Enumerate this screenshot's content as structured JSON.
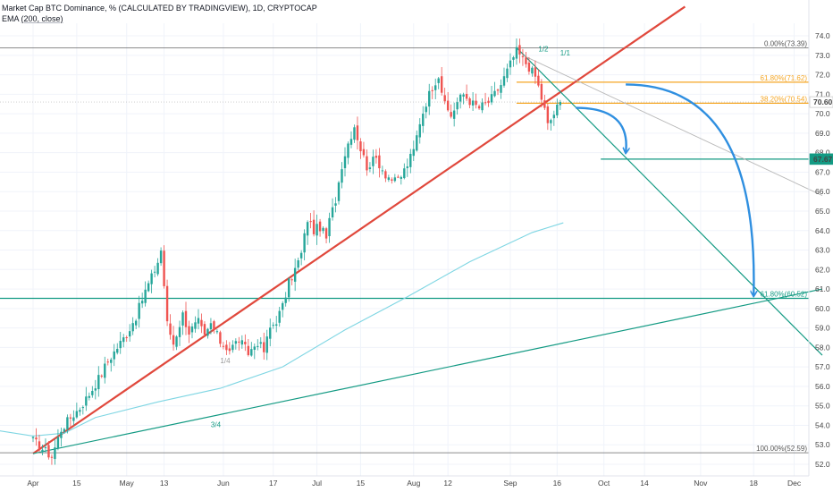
{
  "header": {
    "title": "Market Cap BTC Dominance, % (CALCULATED BY TRADINGVIEW), 1D, CRYPTOCAP",
    "indicator_name": "EMA",
    "indicator_params": "(200, close)"
  },
  "colors": {
    "up": "#26a69a",
    "down": "#ef5350",
    "red_trend": "#e0483c",
    "teal": "#139a83",
    "ema": "#7fd6e3",
    "arrow": "#2f8fe0",
    "fib_orange": "#f5a623",
    "gray": "#888888"
  },
  "chart_data": {
    "type": "candlestick",
    "ylim": [
      51.2,
      74.3
    ],
    "y_ticks": [
      52.0,
      53.0,
      54.0,
      55.0,
      56.0,
      57.0,
      58.0,
      59.0,
      60.0,
      61.0,
      62.0,
      63.0,
      64.0,
      65.0,
      66.0,
      67.0,
      68.0,
      69.0,
      70.0,
      71.0,
      72.0,
      73.0,
      74.0
    ],
    "x_ticks": [
      {
        "label": "Apr",
        "day": 0
      },
      {
        "label": "15",
        "day": 14
      },
      {
        "label": "May",
        "day": 30
      },
      {
        "label": "13",
        "day": 42
      },
      {
        "label": "Jun",
        "day": 61
      },
      {
        "label": "17",
        "day": 77
      },
      {
        "label": "Jul",
        "day": 91
      },
      {
        "label": "15",
        "day": 105
      },
      {
        "label": "Aug",
        "day": 122
      },
      {
        "label": "12",
        "day": 133
      },
      {
        "label": "Sep",
        "day": 153
      },
      {
        "label": "16",
        "day": 168
      },
      {
        "label": "Oct",
        "day": 183
      },
      {
        "label": "14",
        "day": 196
      },
      {
        "label": "Nov",
        "day": 214
      },
      {
        "label": "18",
        "day": 231
      },
      {
        "label": "Dec",
        "day": 244
      }
    ],
    "price_waypoints": [
      [
        0,
        53.2
      ],
      [
        3,
        52.8
      ],
      [
        6,
        52.4
      ],
      [
        9,
        53.8
      ],
      [
        12,
        54.4
      ],
      [
        15,
        54.9
      ],
      [
        18,
        55.6
      ],
      [
        21,
        56.4
      ],
      [
        24,
        57.3
      ],
      [
        27,
        58.0
      ],
      [
        30,
        58.7
      ],
      [
        33,
        59.6
      ],
      [
        36,
        60.9
      ],
      [
        38,
        61.6
      ],
      [
        40,
        62.4
      ],
      [
        41,
        63.0
      ],
      [
        42,
        61.2
      ],
      [
        43,
        59.2
      ],
      [
        45,
        58.2
      ],
      [
        48,
        59.7
      ],
      [
        50,
        58.8
      ],
      [
        53,
        59.3
      ],
      [
        55,
        58.5
      ],
      [
        57,
        59.2
      ],
      [
        60,
        58.3
      ],
      [
        63,
        57.9
      ],
      [
        66,
        58.4
      ],
      [
        69,
        57.7
      ],
      [
        72,
        58.3
      ],
      [
        74,
        57.8
      ],
      [
        76,
        59.0
      ],
      [
        78,
        59.4
      ],
      [
        80,
        60.1
      ],
      [
        82,
        61.3
      ],
      [
        84,
        62.0
      ],
      [
        86,
        62.8
      ],
      [
        88,
        64.6
      ],
      [
        90,
        64.0
      ],
      [
        92,
        64.2
      ],
      [
        94,
        63.6
      ],
      [
        95,
        64.5
      ],
      [
        97,
        65.6
      ],
      [
        99,
        67.4
      ],
      [
        101,
        68.5
      ],
      [
        103,
        69.4
      ],
      [
        105,
        68.2
      ],
      [
        107,
        67.3
      ],
      [
        110,
        67.7
      ],
      [
        113,
        66.9
      ],
      [
        116,
        66.5
      ],
      [
        118,
        66.8
      ],
      [
        120,
        67.4
      ],
      [
        122,
        68.1
      ],
      [
        124,
        69.6
      ],
      [
        126,
        70.6
      ],
      [
        128,
        71.4
      ],
      [
        130,
        72.0
      ],
      [
        132,
        70.4
      ],
      [
        134,
        69.9
      ],
      [
        136,
        70.6
      ],
      [
        138,
        71.0
      ],
      [
        141,
        70.5
      ],
      [
        143,
        70.3
      ],
      [
        146,
        70.6
      ],
      [
        148,
        71.0
      ],
      [
        150,
        71.5
      ],
      [
        152,
        72.2
      ],
      [
        154,
        72.9
      ],
      [
        155,
        73.2
      ],
      [
        157,
        72.8
      ],
      [
        159,
        72.4
      ],
      [
        161,
        71.9
      ],
      [
        162,
        71.4
      ],
      [
        163,
        70.8
      ],
      [
        164,
        70.2
      ],
      [
        165,
        69.4
      ],
      [
        166,
        69.7
      ],
      [
        167,
        70.0
      ],
      [
        168,
        70.3
      ],
      [
        169,
        70.6
      ]
    ],
    "ema_200": [
      [
        -12,
        53.75
      ],
      [
        0,
        53.45
      ],
      [
        10,
        53.6
      ],
      [
        20,
        54.4
      ],
      [
        40,
        55.2
      ],
      [
        60,
        55.9
      ],
      [
        80,
        57.0
      ],
      [
        100,
        58.9
      ],
      [
        120,
        60.6
      ],
      [
        140,
        62.4
      ],
      [
        160,
        63.9
      ],
      [
        170,
        64.4
      ]
    ],
    "trend_lines": [
      {
        "kind": "red-trendline",
        "from": [
          0,
          52.55
        ],
        "to": [
          209,
          75.5
        ]
      },
      {
        "kind": "teal-support",
        "from": [
          0,
          52.55
        ],
        "to": [
          253,
          61.0
        ]
      },
      {
        "kind": "teal-descending",
        "from": [
          155,
          73.39
        ],
        "to": [
          253,
          57.6
        ]
      },
      {
        "kind": "gray-trend",
        "from": [
          157,
          73.0
        ],
        "to": [
          253,
          65.8
        ]
      }
    ],
    "horizontal_levels": [
      {
        "kind": "fib-top",
        "value": 73.39
      },
      {
        "kind": "fib-bottom",
        "value": 52.59
      },
      {
        "kind": "support-upper",
        "value": 67.67
      },
      {
        "kind": "support-lower",
        "value": 60.52
      },
      {
        "kind": "fib-618",
        "value": 71.62
      },
      {
        "kind": "fib-382",
        "value": 70.54
      },
      {
        "kind": "current-price",
        "value": 70.6
      }
    ],
    "fib_labels": [
      {
        "text": "0.00%(73.39)",
        "value": 73.39
      },
      {
        "text": "61.80%(71.62)",
        "value": 71.62
      },
      {
        "text": "38.20%(70.54)",
        "value": 70.54
      },
      {
        "text": "61.80%(60.52)",
        "value": 60.52
      },
      {
        "text": "100.00%(52.59)",
        "value": 52.59
      }
    ],
    "price_badges": [
      {
        "text": "70.60",
        "value": 70.6,
        "kind": "current"
      },
      {
        "text": "67.67",
        "value": 67.67,
        "kind": "support"
      }
    ],
    "small_labels": [
      {
        "text": "1/2",
        "day": 162,
        "value": 73.2
      },
      {
        "text": "1/1",
        "day": 169,
        "value": 73.0
      },
      {
        "text": "3/4",
        "day": 57,
        "value": 53.9
      },
      {
        "text": "1/4",
        "day": 60,
        "value": 57.2
      }
    ],
    "arrows": [
      {
        "from": [
          174,
          70.3
        ],
        "to": [
          190,
          68.0
        ]
      },
      {
        "from": [
          190,
          71.5
        ],
        "to": [
          231,
          60.65
        ]
      }
    ]
  }
}
